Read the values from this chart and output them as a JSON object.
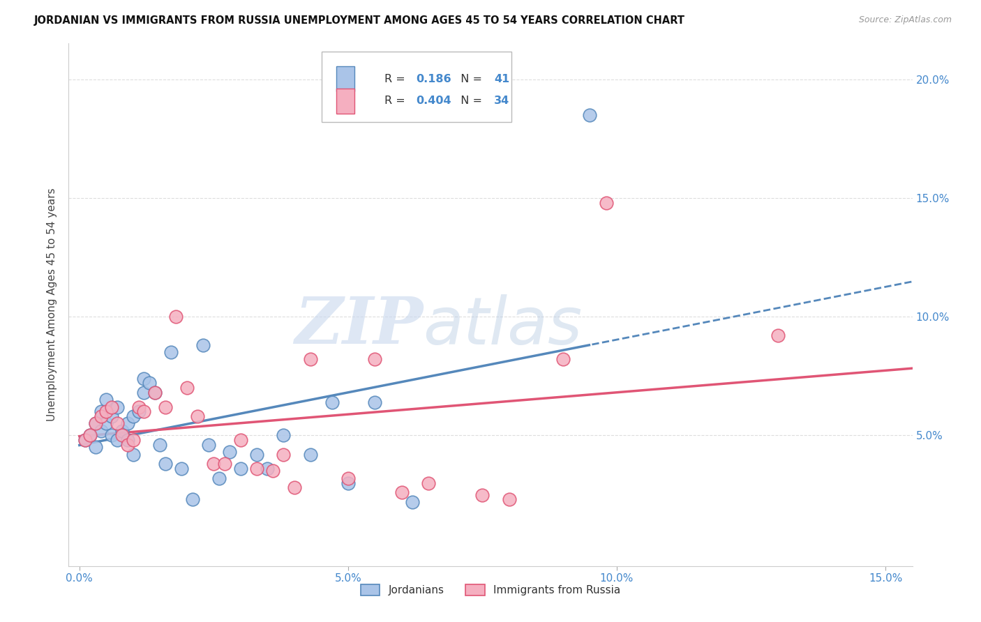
{
  "title": "JORDANIAN VS IMMIGRANTS FROM RUSSIA UNEMPLOYMENT AMONG AGES 45 TO 54 YEARS CORRELATION CHART",
  "source": "Source: ZipAtlas.com",
  "ylabel": "Unemployment Among Ages 45 to 54 years",
  "xlim": [
    -0.002,
    0.155
  ],
  "ylim": [
    -0.005,
    0.215
  ],
  "jordanian_color": "#aac4e8",
  "russia_color": "#f5afc0",
  "line_jordan_color": "#5588bb",
  "line_russia_color": "#e05575",
  "tick_color": "#4488cc",
  "grid_color": "#dddddd",
  "watermark_zip": "ZIP",
  "watermark_atlas": "atlas",
  "jordanian_x": [
    0.001,
    0.002,
    0.003,
    0.003,
    0.004,
    0.004,
    0.005,
    0.005,
    0.006,
    0.006,
    0.007,
    0.007,
    0.008,
    0.009,
    0.009,
    0.01,
    0.01,
    0.011,
    0.012,
    0.012,
    0.013,
    0.014,
    0.015,
    0.016,
    0.017,
    0.019,
    0.021,
    0.023,
    0.024,
    0.026,
    0.028,
    0.03,
    0.033,
    0.035,
    0.038,
    0.043,
    0.047,
    0.05,
    0.055,
    0.062,
    0.095
  ],
  "jordanian_y": [
    0.048,
    0.05,
    0.055,
    0.045,
    0.052,
    0.06,
    0.055,
    0.065,
    0.05,
    0.058,
    0.048,
    0.062,
    0.052,
    0.048,
    0.055,
    0.042,
    0.058,
    0.06,
    0.068,
    0.074,
    0.072,
    0.068,
    0.046,
    0.038,
    0.085,
    0.036,
    0.023,
    0.088,
    0.046,
    0.032,
    0.043,
    0.036,
    0.042,
    0.036,
    0.05,
    0.042,
    0.064,
    0.03,
    0.064,
    0.022,
    0.185
  ],
  "russia_x": [
    0.001,
    0.002,
    0.003,
    0.004,
    0.005,
    0.006,
    0.007,
    0.008,
    0.009,
    0.01,
    0.011,
    0.012,
    0.014,
    0.016,
    0.018,
    0.02,
    0.022,
    0.025,
    0.027,
    0.03,
    0.033,
    0.036,
    0.038,
    0.04,
    0.043,
    0.05,
    0.055,
    0.06,
    0.065,
    0.075,
    0.08,
    0.09,
    0.098,
    0.13
  ],
  "russia_y": [
    0.048,
    0.05,
    0.055,
    0.058,
    0.06,
    0.062,
    0.055,
    0.05,
    0.046,
    0.048,
    0.062,
    0.06,
    0.068,
    0.062,
    0.1,
    0.07,
    0.058,
    0.038,
    0.038,
    0.048,
    0.036,
    0.035,
    0.042,
    0.028,
    0.082,
    0.032,
    0.082,
    0.026,
    0.03,
    0.025,
    0.023,
    0.082,
    0.148,
    0.092
  ]
}
